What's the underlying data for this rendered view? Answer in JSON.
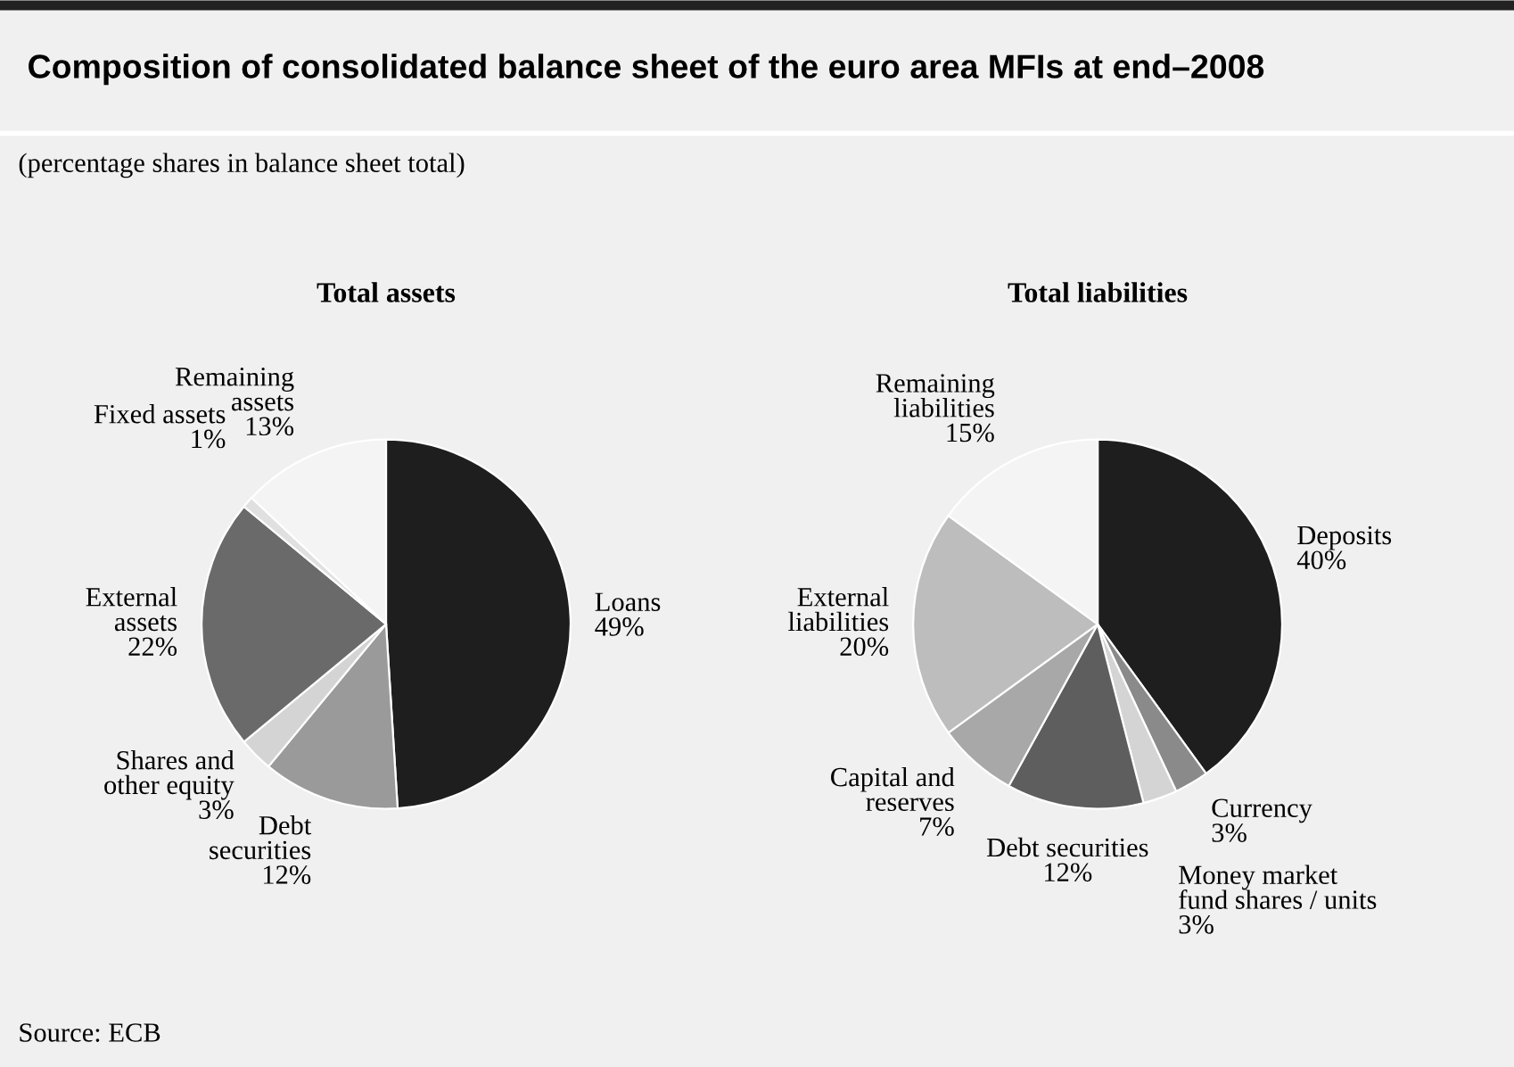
{
  "chart_data": [
    {
      "type": "pie",
      "title": "Total assets",
      "categories": [
        "Loans",
        "Debt\nsecurities",
        "Shares and\nother equity",
        "External\nassets",
        "Fixed assets",
        "Remaining\nassets"
      ],
      "values": [
        49,
        12,
        3,
        22,
        1,
        13
      ],
      "value_labels": [
        "49%",
        "12%",
        "3%",
        "22%",
        "1%",
        "13%"
      ],
      "colors": [
        "#1e1e1e",
        "#9a9a9a",
        "#d4d4d4",
        "#6a6a6a",
        "#e0e0e0",
        "#f4f4f4"
      ],
      "annotations": [
        "Composition of consolidated balance sheet of the euro area MFIs at end–2008",
        "(percentage shares in balance sheet total)",
        "Source: ECB"
      ]
    },
    {
      "type": "pie",
      "title": "Total liabilities",
      "categories": [
        "Deposits",
        "Currency",
        "Money market\nfund shares / units",
        "Debt securities",
        "Capital and\nreserves",
        "External\nliabilities",
        "Remaining\nliabilities"
      ],
      "values": [
        40,
        3,
        3,
        12,
        7,
        20,
        15
      ],
      "value_labels": [
        "40%",
        "3%",
        "3%",
        "12%",
        "7%",
        "20%",
        "15%"
      ],
      "colors": [
        "#1e1e1e",
        "#8a8a8a",
        "#d4d4d4",
        "#5e5e5e",
        "#a8a8a8",
        "#bdbdbd",
        "#f4f4f4"
      ]
    }
  ]
}
